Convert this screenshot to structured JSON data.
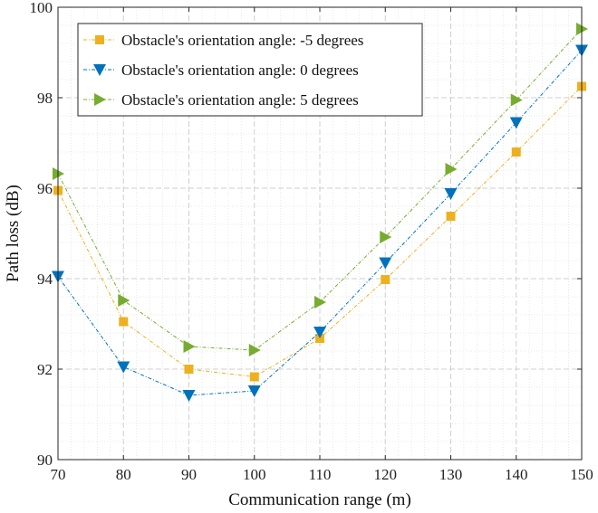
{
  "chart_data": {
    "type": "line",
    "title": "",
    "xlabel": "Communication range (m)",
    "ylabel": "Path loss (dB)",
    "x": [
      70,
      80,
      90,
      100,
      110,
      120,
      130,
      140,
      150
    ],
    "xlim": [
      70,
      150
    ],
    "ylim": [
      90,
      100
    ],
    "xticks": [
      "70",
      "80",
      "90",
      "100",
      "110",
      "120",
      "130",
      "140",
      "150"
    ],
    "yticks": [
      "90",
      "92",
      "94",
      "96",
      "98",
      "100"
    ],
    "grid": true,
    "legend_position": "top-left",
    "series": [
      {
        "name": "Obstacle's orientation angle: -5 degrees",
        "color": "#EDB120",
        "marker": "square",
        "values": [
          95.95,
          93.05,
          92.0,
          91.83,
          92.68,
          93.98,
          95.38,
          96.8,
          98.25
        ]
      },
      {
        "name": "Obstacle's orientation angle: 0 degrees",
        "color": "#0072BD",
        "marker": "triangle-down",
        "values": [
          94.05,
          92.05,
          91.42,
          91.52,
          92.82,
          94.35,
          95.88,
          97.45,
          99.05
        ]
      },
      {
        "name": "Obstacle's orientation angle: 5 degrees",
        "color": "#77AC30",
        "marker": "triangle-right",
        "values": [
          96.32,
          93.52,
          92.5,
          92.42,
          93.48,
          94.92,
          96.42,
          97.95,
          99.52
        ]
      }
    ]
  }
}
